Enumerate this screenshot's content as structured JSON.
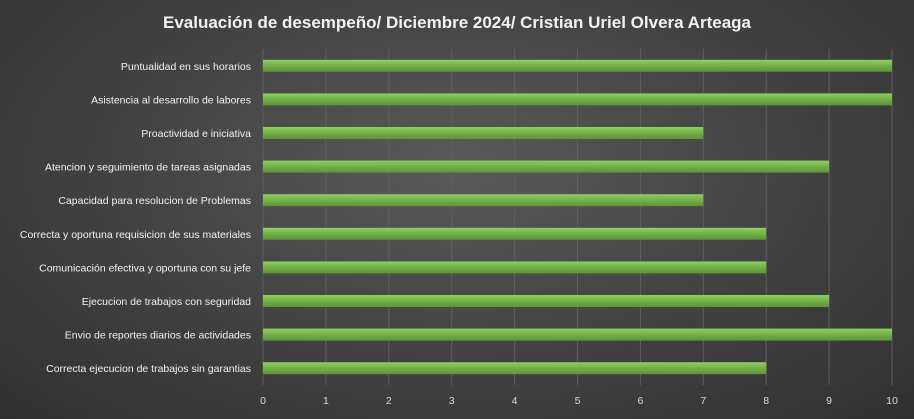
{
  "chart_data": {
    "type": "bar",
    "orientation": "horizontal",
    "title": "Evaluación de desempeño/ Diciembre 2024/ Cristian Uriel Olvera Arteaga",
    "xlabel": "",
    "ylabel": "",
    "categories": [
      "Puntualidad en sus horarios",
      "Asistencia al desarrollo de labores",
      "Proactividad e iniciativa",
      "Atencion y seguimiento de tareas asignadas",
      "Capacidad para resolucion de Problemas",
      "Correcta y oportuna requisicion de sus materiales",
      "Comunicación  efectiva y oportuna con su jefe",
      "Ejecucion de trabajos con seguridad",
      "Envio de reportes diarios de actividades",
      "Correcta ejecucion de trabajos sin garantias"
    ],
    "values": [
      10,
      10,
      7,
      9,
      7,
      8,
      8,
      9,
      10,
      8
    ],
    "xlim": [
      0,
      10
    ],
    "xticks": [
      0,
      1,
      2,
      3,
      4,
      5,
      6,
      7,
      8,
      9,
      10
    ],
    "grid": true,
    "legend": "none",
    "colors": {
      "bar": "#70ad47",
      "bar_highlight": "#8fd060",
      "gridline": "#5f5f5f",
      "text": "#f2f2f2"
    }
  }
}
